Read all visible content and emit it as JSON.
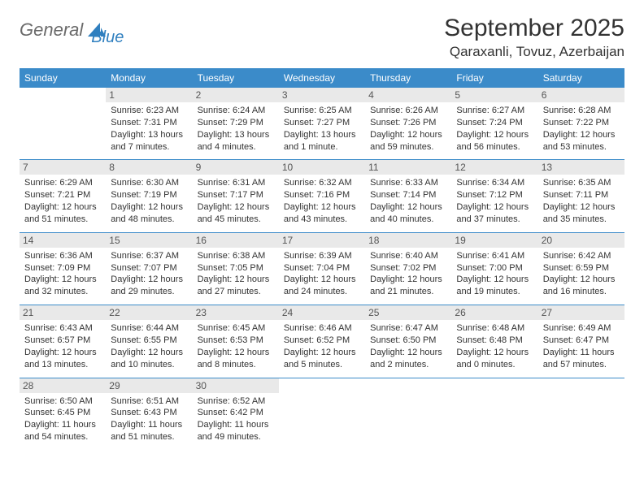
{
  "logo": {
    "word1": "General",
    "word2": "Blue"
  },
  "title": "September 2025",
  "location": "Qaraxanli, Tovuz, Azerbaijan",
  "colors": {
    "header_bg": "#3b8bc9",
    "header_fg": "#ffffff",
    "daynum_bg": "#e9e9e9",
    "rule": "#3b8bc9",
    "logo_grey": "#6b6b6b",
    "logo_blue": "#2f7fbf"
  },
  "day_headers": [
    "Sunday",
    "Monday",
    "Tuesday",
    "Wednesday",
    "Thursday",
    "Friday",
    "Saturday"
  ],
  "weeks": [
    [
      null,
      {
        "n": "1",
        "sr": "Sunrise: 6:23 AM",
        "ss": "Sunset: 7:31 PM",
        "d1": "Daylight: 13 hours",
        "d2": "and 7 minutes."
      },
      {
        "n": "2",
        "sr": "Sunrise: 6:24 AM",
        "ss": "Sunset: 7:29 PM",
        "d1": "Daylight: 13 hours",
        "d2": "and 4 minutes."
      },
      {
        "n": "3",
        "sr": "Sunrise: 6:25 AM",
        "ss": "Sunset: 7:27 PM",
        "d1": "Daylight: 13 hours",
        "d2": "and 1 minute."
      },
      {
        "n": "4",
        "sr": "Sunrise: 6:26 AM",
        "ss": "Sunset: 7:26 PM",
        "d1": "Daylight: 12 hours",
        "d2": "and 59 minutes."
      },
      {
        "n": "5",
        "sr": "Sunrise: 6:27 AM",
        "ss": "Sunset: 7:24 PM",
        "d1": "Daylight: 12 hours",
        "d2": "and 56 minutes."
      },
      {
        "n": "6",
        "sr": "Sunrise: 6:28 AM",
        "ss": "Sunset: 7:22 PM",
        "d1": "Daylight: 12 hours",
        "d2": "and 53 minutes."
      }
    ],
    [
      {
        "n": "7",
        "sr": "Sunrise: 6:29 AM",
        "ss": "Sunset: 7:21 PM",
        "d1": "Daylight: 12 hours",
        "d2": "and 51 minutes."
      },
      {
        "n": "8",
        "sr": "Sunrise: 6:30 AM",
        "ss": "Sunset: 7:19 PM",
        "d1": "Daylight: 12 hours",
        "d2": "and 48 minutes."
      },
      {
        "n": "9",
        "sr": "Sunrise: 6:31 AM",
        "ss": "Sunset: 7:17 PM",
        "d1": "Daylight: 12 hours",
        "d2": "and 45 minutes."
      },
      {
        "n": "10",
        "sr": "Sunrise: 6:32 AM",
        "ss": "Sunset: 7:16 PM",
        "d1": "Daylight: 12 hours",
        "d2": "and 43 minutes."
      },
      {
        "n": "11",
        "sr": "Sunrise: 6:33 AM",
        "ss": "Sunset: 7:14 PM",
        "d1": "Daylight: 12 hours",
        "d2": "and 40 minutes."
      },
      {
        "n": "12",
        "sr": "Sunrise: 6:34 AM",
        "ss": "Sunset: 7:12 PM",
        "d1": "Daylight: 12 hours",
        "d2": "and 37 minutes."
      },
      {
        "n": "13",
        "sr": "Sunrise: 6:35 AM",
        "ss": "Sunset: 7:11 PM",
        "d1": "Daylight: 12 hours",
        "d2": "and 35 minutes."
      }
    ],
    [
      {
        "n": "14",
        "sr": "Sunrise: 6:36 AM",
        "ss": "Sunset: 7:09 PM",
        "d1": "Daylight: 12 hours",
        "d2": "and 32 minutes."
      },
      {
        "n": "15",
        "sr": "Sunrise: 6:37 AM",
        "ss": "Sunset: 7:07 PM",
        "d1": "Daylight: 12 hours",
        "d2": "and 29 minutes."
      },
      {
        "n": "16",
        "sr": "Sunrise: 6:38 AM",
        "ss": "Sunset: 7:05 PM",
        "d1": "Daylight: 12 hours",
        "d2": "and 27 minutes."
      },
      {
        "n": "17",
        "sr": "Sunrise: 6:39 AM",
        "ss": "Sunset: 7:04 PM",
        "d1": "Daylight: 12 hours",
        "d2": "and 24 minutes."
      },
      {
        "n": "18",
        "sr": "Sunrise: 6:40 AM",
        "ss": "Sunset: 7:02 PM",
        "d1": "Daylight: 12 hours",
        "d2": "and 21 minutes."
      },
      {
        "n": "19",
        "sr": "Sunrise: 6:41 AM",
        "ss": "Sunset: 7:00 PM",
        "d1": "Daylight: 12 hours",
        "d2": "and 19 minutes."
      },
      {
        "n": "20",
        "sr": "Sunrise: 6:42 AM",
        "ss": "Sunset: 6:59 PM",
        "d1": "Daylight: 12 hours",
        "d2": "and 16 minutes."
      }
    ],
    [
      {
        "n": "21",
        "sr": "Sunrise: 6:43 AM",
        "ss": "Sunset: 6:57 PM",
        "d1": "Daylight: 12 hours",
        "d2": "and 13 minutes."
      },
      {
        "n": "22",
        "sr": "Sunrise: 6:44 AM",
        "ss": "Sunset: 6:55 PM",
        "d1": "Daylight: 12 hours",
        "d2": "and 10 minutes."
      },
      {
        "n": "23",
        "sr": "Sunrise: 6:45 AM",
        "ss": "Sunset: 6:53 PM",
        "d1": "Daylight: 12 hours",
        "d2": "and 8 minutes."
      },
      {
        "n": "24",
        "sr": "Sunrise: 6:46 AM",
        "ss": "Sunset: 6:52 PM",
        "d1": "Daylight: 12 hours",
        "d2": "and 5 minutes."
      },
      {
        "n": "25",
        "sr": "Sunrise: 6:47 AM",
        "ss": "Sunset: 6:50 PM",
        "d1": "Daylight: 12 hours",
        "d2": "and 2 minutes."
      },
      {
        "n": "26",
        "sr": "Sunrise: 6:48 AM",
        "ss": "Sunset: 6:48 PM",
        "d1": "Daylight: 12 hours",
        "d2": "and 0 minutes."
      },
      {
        "n": "27",
        "sr": "Sunrise: 6:49 AM",
        "ss": "Sunset: 6:47 PM",
        "d1": "Daylight: 11 hours",
        "d2": "and 57 minutes."
      }
    ],
    [
      {
        "n": "28",
        "sr": "Sunrise: 6:50 AM",
        "ss": "Sunset: 6:45 PM",
        "d1": "Daylight: 11 hours",
        "d2": "and 54 minutes."
      },
      {
        "n": "29",
        "sr": "Sunrise: 6:51 AM",
        "ss": "Sunset: 6:43 PM",
        "d1": "Daylight: 11 hours",
        "d2": "and 51 minutes."
      },
      {
        "n": "30",
        "sr": "Sunrise: 6:52 AM",
        "ss": "Sunset: 6:42 PM",
        "d1": "Daylight: 11 hours",
        "d2": "and 49 minutes."
      },
      null,
      null,
      null,
      null
    ]
  ]
}
